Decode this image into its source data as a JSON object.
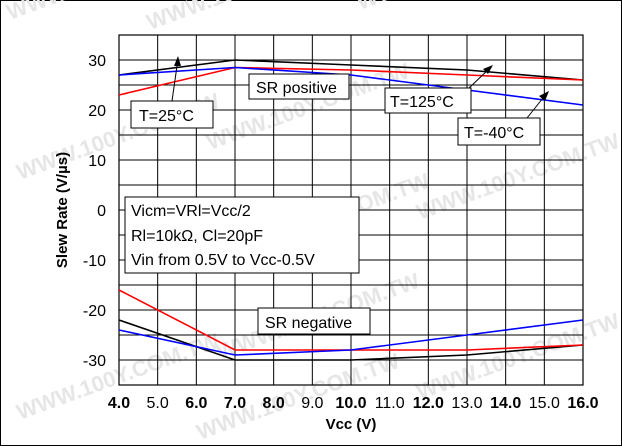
{
  "chart_data": {
    "type": "line",
    "title": "",
    "xlabel": "Vcc (V)",
    "ylabel": "Slew Rate (V/µs)",
    "xlim": [
      4.0,
      16.0
    ],
    "ylim": [
      -35,
      35
    ],
    "grid": true,
    "x_ticks": [
      "4.0",
      "5.0",
      "6.0",
      "7.0",
      "8.0",
      "9.0",
      "10.0",
      "11.0",
      "12.0",
      "13.0",
      "14.0",
      "15.0",
      "16.0"
    ],
    "x_ticks_bold": [
      true,
      false,
      true,
      true,
      true,
      false,
      true,
      false,
      true,
      false,
      true,
      false,
      true
    ],
    "y_ticks": [
      "30",
      "20",
      "10",
      "0",
      "-10",
      "-20",
      "-30"
    ],
    "y_tick_values": [
      30,
      20,
      10,
      0,
      -10,
      -20,
      -30
    ],
    "series": [
      {
        "group": "positive",
        "color": "#000000",
        "x": [
          4,
          7,
          10,
          13,
          16
        ],
        "y": [
          27,
          30,
          29,
          28,
          26
        ]
      },
      {
        "group": "positive",
        "color": "#ff0000",
        "x": [
          4,
          7,
          10,
          13,
          16
        ],
        "y": [
          23,
          28.5,
          28,
          27,
          26
        ]
      },
      {
        "group": "positive",
        "color": "#0000ff",
        "x": [
          4,
          7,
          10,
          13,
          16
        ],
        "y": [
          27,
          28.5,
          27,
          24,
          21
        ]
      },
      {
        "group": "negative",
        "color": "#000000",
        "x": [
          4,
          7,
          10,
          13,
          16
        ],
        "y": [
          -22,
          -30,
          -30,
          -29,
          -27
        ]
      },
      {
        "group": "negative",
        "color": "#ff0000",
        "x": [
          4,
          7,
          10,
          13,
          16
        ],
        "y": [
          -16,
          -28,
          -28,
          -28,
          -27
        ]
      },
      {
        "group": "negative",
        "color": "#0000ff",
        "x": [
          4,
          7,
          10,
          13,
          16
        ],
        "y": [
          -24,
          -29,
          -28,
          -25,
          -22
        ]
      }
    ],
    "annotations": {
      "t25": "T=25°C",
      "t125": "T=125°C",
      "tm40": "T=-40°C",
      "sr_pos": "SR positive",
      "sr_neg": "SR negative",
      "conditions": [
        "Vicm=VRl=Vcc/2",
        "Rl=10kΩ, Cl=20pF",
        "Vin from 0.5V to Vcc-0.5V"
      ]
    }
  },
  "watermark": "WWW.100Y.COM.TW"
}
